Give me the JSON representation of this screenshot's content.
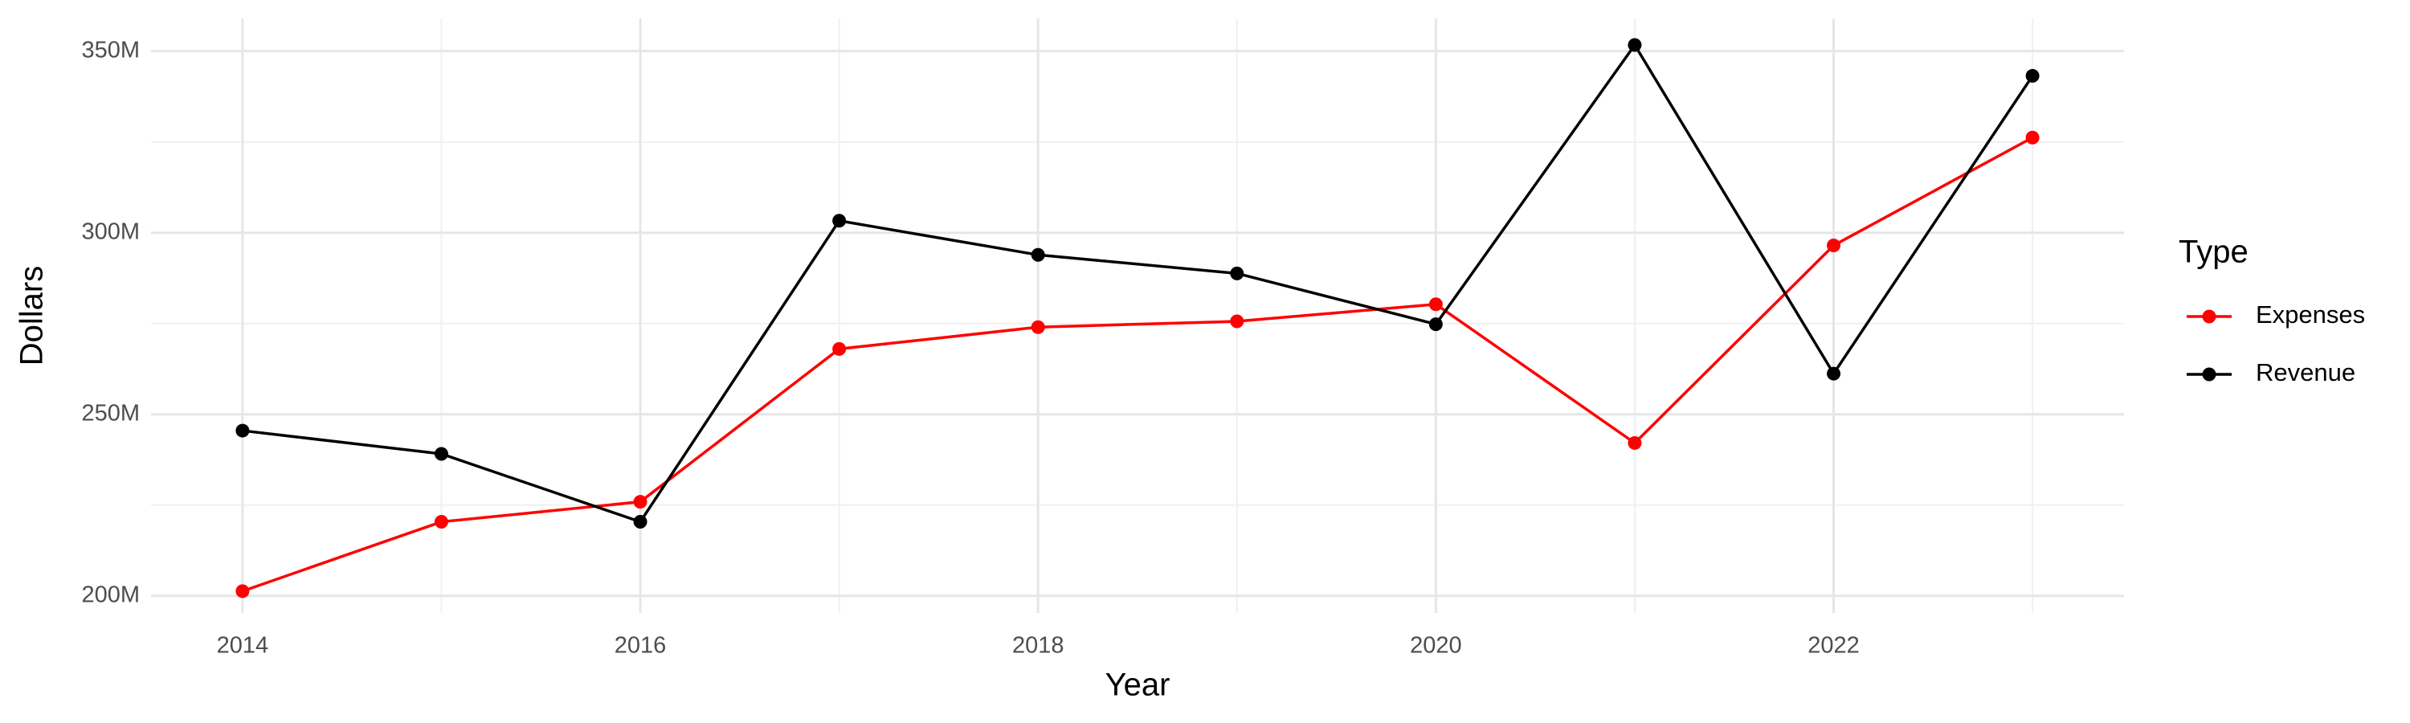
{
  "chart_data": {
    "type": "line",
    "x_label": "Year",
    "y_label": "Dollars",
    "legend_title": "Type",
    "x": [
      2014,
      2015,
      2016,
      2017,
      2018,
      2019,
      2020,
      2021,
      2022,
      2023
    ],
    "series": [
      {
        "name": "Expenses",
        "color": "#ff0000",
        "values": [
          201300000,
          220400000,
          225900000,
          268000000,
          274000000,
          275600000,
          280300000,
          242100000,
          296500000,
          326200000
        ]
      },
      {
        "name": "Revenue",
        "color": "#000000",
        "values": [
          245500000,
          239100000,
          220400000,
          303300000,
          293900000,
          288800000,
          274800000,
          351700000,
          261200000,
          343200000
        ]
      }
    ],
    "xlim": [
      2013.54,
      2023.46
    ],
    "xticks": [
      2014,
      2016,
      2018,
      2020,
      2022
    ],
    "ylim": [
      195300000,
      359000000
    ],
    "yticks": [
      {
        "value": 200000000,
        "label": "200M"
      },
      {
        "value": 250000000,
        "label": "250M"
      },
      {
        "value": 300000000,
        "label": "300M"
      },
      {
        "value": 350000000,
        "label": "350M"
      }
    ],
    "grid": true,
    "legend": "right"
  }
}
